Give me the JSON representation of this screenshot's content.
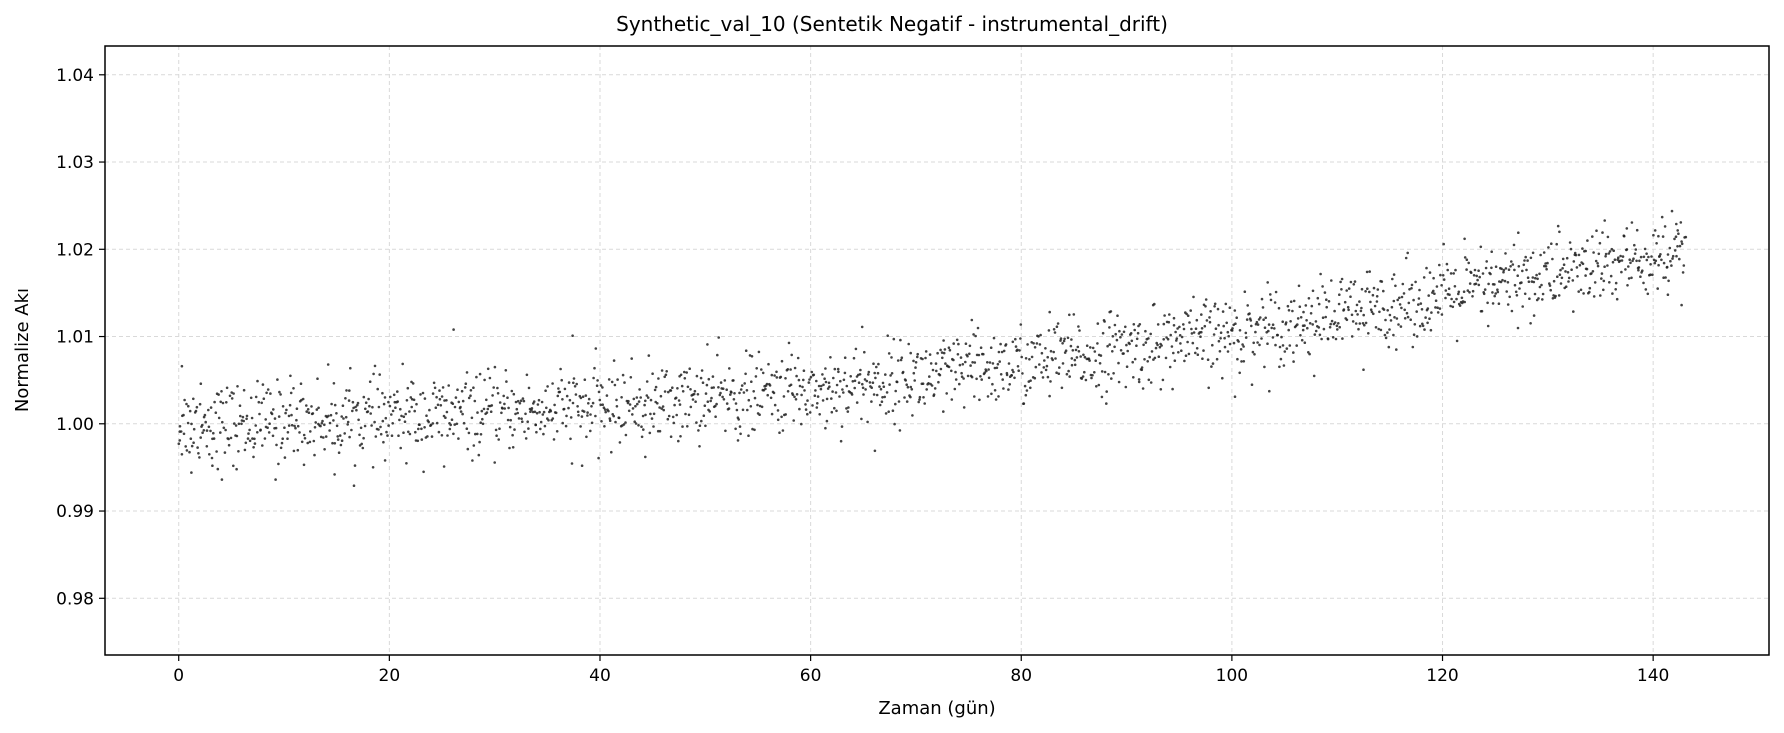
{
  "chart_data": {
    "type": "scatter",
    "title": "Synthetic_val_10 (Sentetik Negatif - instrumental_drift)",
    "xlabel": "Zaman (gün)",
    "ylabel": "Normalize Akı",
    "xlim": [
      -7,
      151
    ],
    "ylim": [
      0.9735,
      1.0433
    ],
    "xticks": [
      0,
      20,
      40,
      60,
      80,
      100,
      120,
      140
    ],
    "xtick_labels": [
      "0",
      "20",
      "40",
      "60",
      "80",
      "100",
      "120",
      "140"
    ],
    "yticks": [
      0.98,
      0.99,
      1.0,
      1.01,
      1.02,
      1.03,
      1.04
    ],
    "ytick_labels": [
      "0.98",
      "0.99",
      "1.00",
      "1.01",
      "1.02",
      "1.03",
      "1.04"
    ],
    "grid": true,
    "legend": "none",
    "series": [
      {
        "marker_color": "#222222",
        "trend": {
          "x": [
            0,
            10,
            20,
            30,
            40,
            50,
            60,
            70,
            80,
            90,
            100,
            110,
            120,
            130,
            140,
            143
          ],
          "y": [
            1.0,
            1.0003,
            1.0007,
            1.0012,
            1.0019,
            1.0028,
            1.0039,
            1.0052,
            1.0067,
            1.0084,
            1.0103,
            1.0124,
            1.0146,
            1.017,
            1.0188,
            1.0192
          ]
        },
        "points": {
          "x": [
            0.1,
            0.3,
            1.2,
            2.1,
            3.2,
            4.1,
            5.5,
            7.1,
            9.2,
            10.6,
            14.8,
            16.2,
            19.6,
            22.1,
            25.2,
            26.1,
            28.7,
            33.9,
            37.4,
            38.3,
            40.1,
            44.3,
            47.6,
            50.2,
            53.1,
            58.2,
            61.4,
            64.9,
            66.1,
            69.5,
            72.6,
            75.3,
            79.2,
            82.7,
            84.8,
            88.4,
            91.2,
            94.5,
            97.1,
            100.3,
            103.4,
            106.8,
            110.2,
            112.5,
            115.4,
            118.6,
            122.1,
            124.8,
            127.2,
            128.7,
            131.1,
            133.6,
            135.4,
            137.5,
            138.6,
            140.5,
            141.4,
            142.2,
            142.7,
            143.1
          ],
          "y": [
            0.9981,
            1.0066,
            0.9944,
            1.0046,
            0.9952,
            0.9936,
            0.9948,
            0.9962,
            0.9936,
            1.0055,
            0.9942,
            1.0038,
            0.9958,
            1.0048,
            0.9951,
            1.0108,
            0.9988,
            0.9999,
            1.0101,
            0.9952,
            1.0044,
            0.9962,
            1.0022,
            1.0091,
            0.9981,
            1.0079,
            0.9995,
            1.0111,
            0.9969,
            1.0081,
            1.0014,
            1.0119,
            1.0094,
            1.0128,
            1.0075,
            1.0128,
            1.0048,
            1.0121,
            1.0105,
            1.0031,
            1.0162,
            1.0128,
            1.0148,
            1.0062,
            1.0171,
            1.0132,
            1.0212,
            1.0138,
            1.0219,
            1.0124,
            1.022,
            1.0198,
            1.0233,
            1.0224,
            1.0176,
            1.0215,
            1.0148,
            1.0229,
            1.0136,
            1.0214
          ]
        },
        "n_points": 2000,
        "x_range": [
          0,
          143
        ],
        "scatter_sd": 0.0022
      }
    ]
  }
}
